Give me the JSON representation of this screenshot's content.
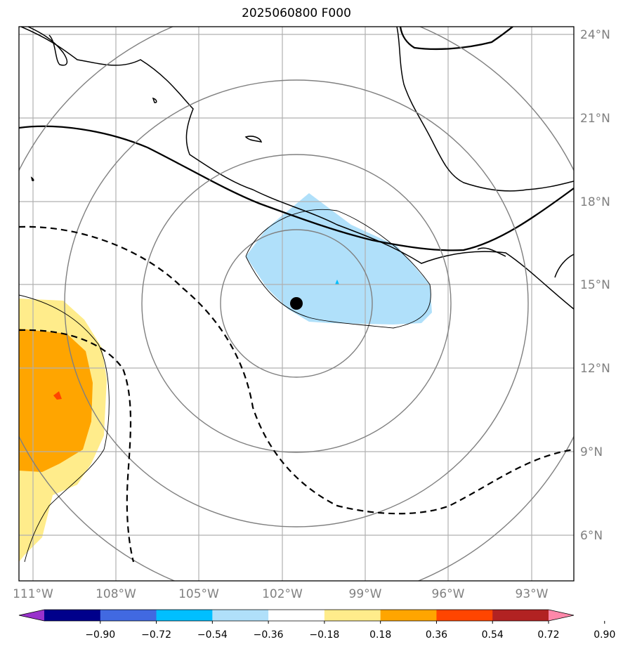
{
  "title": "2025060800 F000",
  "map": {
    "lon_labels": [
      "111°W",
      "108°W",
      "105°W",
      "102°W",
      "99°W",
      "96°W",
      "93°W"
    ],
    "lat_labels": [
      "24°N",
      "21°N",
      "18°N",
      "15°N",
      "12°N",
      "9°N",
      "6°N"
    ],
    "center_marker": {
      "lon": "101.5°W",
      "lat": "14.3°N"
    },
    "range_rings": 4
  },
  "colorbar": {
    "ticks": [
      "−0.90",
      "−0.72",
      "−0.54",
      "−0.36",
      "−0.18",
      "0.18",
      "0.36",
      "0.54",
      "0.72",
      "0.90"
    ],
    "colors": [
      "#9932cc",
      "#00008b",
      "#4169e1",
      "#00bfff",
      "#b0e0fa",
      "#ffffff",
      "#ffec8b",
      "#ffa500",
      "#ff4500",
      "#b22222",
      "#ff88aa"
    ]
  }
}
